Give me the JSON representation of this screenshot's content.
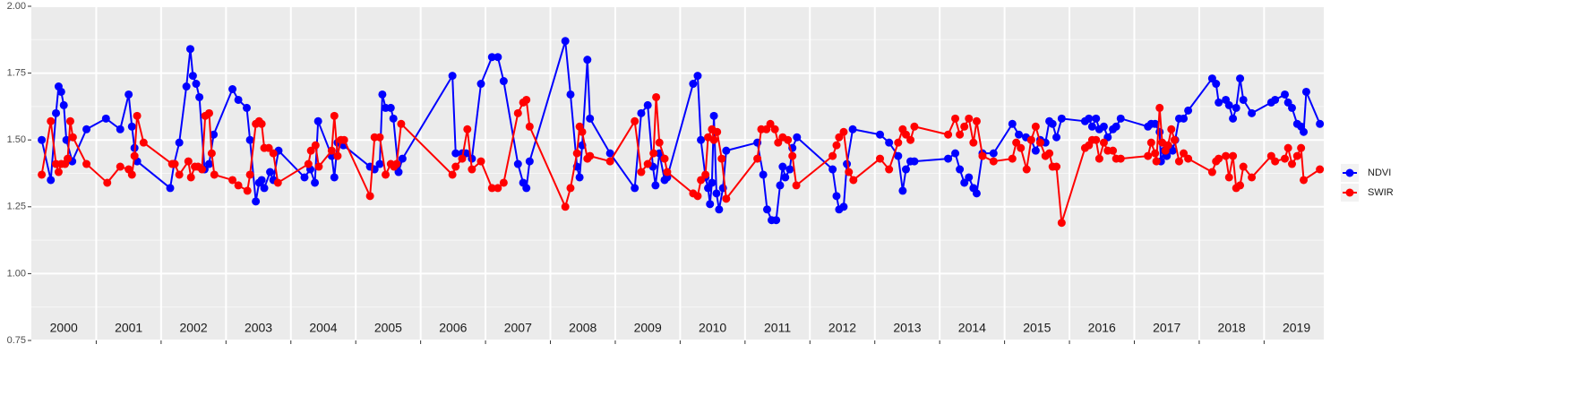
{
  "chart_data": {
    "type": "line",
    "xlim": [
      2000,
      2019.92
    ],
    "ylim": [
      0.75,
      2.0
    ],
    "yticks": [
      {
        "value": 0.75,
        "label": "0.75"
      },
      {
        "value": 1.0,
        "label": "1.00"
      },
      {
        "value": 1.25,
        "label": "1.25"
      },
      {
        "value": 1.5,
        "label": "1.50"
      },
      {
        "value": 1.75,
        "label": "1.75"
      },
      {
        "value": 2.0,
        "label": "2.00"
      }
    ],
    "xgrid": [
      2001,
      2002,
      2003,
      2004,
      2005,
      2006,
      2007,
      2008,
      2009,
      2010,
      2011,
      2012,
      2013,
      2014,
      2015,
      2016,
      2017,
      2018,
      2019
    ],
    "grid": true,
    "legend": "right",
    "year_labels": [
      {
        "x": 2000.5,
        "text": "2000"
      },
      {
        "x": 2001.5,
        "text": "2001"
      },
      {
        "x": 2002.5,
        "text": "2002"
      },
      {
        "x": 2003.5,
        "text": "2003"
      },
      {
        "x": 2004.5,
        "text": "2004"
      },
      {
        "x": 2005.5,
        "text": "2005"
      },
      {
        "x": 2006.5,
        "text": "2006"
      },
      {
        "x": 2007.5,
        "text": "2007"
      },
      {
        "x": 2008.5,
        "text": "2008"
      },
      {
        "x": 2009.5,
        "text": "2009"
      },
      {
        "x": 2010.5,
        "text": "2010"
      },
      {
        "x": 2011.5,
        "text": "2011"
      },
      {
        "x": 2012.5,
        "text": "2012"
      },
      {
        "x": 2013.5,
        "text": "2013"
      },
      {
        "x": 2014.5,
        "text": "2014"
      },
      {
        "x": 2015.5,
        "text": "2015"
      },
      {
        "x": 2016.5,
        "text": "2016"
      },
      {
        "x": 2017.5,
        "text": "2017"
      },
      {
        "x": 2018.5,
        "text": "2018"
      },
      {
        "x": 2019.5,
        "text": "2019"
      }
    ],
    "series": [
      {
        "name": "NDVI",
        "color": "#0000ff",
        "x": [
          2000.16,
          2000.3,
          2000.38,
          2000.42,
          2000.46,
          2000.5,
          2000.54,
          2000.63,
          2000.85,
          2001.15,
          2001.37,
          2001.5,
          2001.55,
          2001.59,
          2001.63,
          2002.14,
          2002.2,
          2002.28,
          2002.39,
          2002.45,
          2002.49,
          2002.54,
          2002.59,
          2002.67,
          2002.74,
          2002.81,
          2003.1,
          2003.19,
          2003.32,
          2003.37,
          2003.46,
          2003.51,
          2003.55,
          2003.59,
          2003.68,
          2003.73,
          2003.81,
          2004.21,
          2004.3,
          2004.37,
          2004.42,
          2004.63,
          2004.67,
          2004.72,
          2004.81,
          2005.22,
          2005.29,
          2005.37,
          2005.41,
          2005.46,
          2005.54,
          2005.58,
          2005.66,
          2005.72,
          2006.49,
          2006.54,
          2006.64,
          2006.7,
          2006.79,
          2006.93,
          2007.1,
          2007.19,
          2007.28,
          2007.5,
          2007.58,
          2007.63,
          2007.68,
          2008.23,
          2008.31,
          2008.41,
          2008.45,
          2008.49,
          2008.57,
          2008.61,
          2008.92,
          2009.3,
          2009.4,
          2009.5,
          2009.58,
          2009.62,
          2009.68,
          2009.76,
          2009.8,
          2010.2,
          2010.27,
          2010.32,
          2010.39,
          2010.43,
          2010.46,
          2010.49,
          2010.52,
          2010.56,
          2010.6,
          2010.66,
          2010.71,
          2011.19,
          2011.28,
          2011.34,
          2011.41,
          2011.48,
          2011.54,
          2011.58,
          2011.62,
          2011.69,
          2011.73,
          2011.8,
          2012.35,
          2012.41,
          2012.45,
          2012.52,
          2012.57,
          2012.66,
          2013.08,
          2013.22,
          2013.36,
          2013.43,
          2013.48,
          2013.55,
          2013.61,
          2014.13,
          2014.24,
          2014.31,
          2014.38,
          2014.45,
          2014.52,
          2014.57,
          2014.66,
          2014.83,
          2015.12,
          2015.22,
          2015.33,
          2015.41,
          2015.48,
          2015.55,
          2015.63,
          2015.69,
          2015.74,
          2015.8,
          2015.88,
          2016.24,
          2016.3,
          2016.35,
          2016.41,
          2016.46,
          2016.53,
          2016.59,
          2016.67,
          2016.72,
          2016.79,
          2017.21,
          2017.26,
          2017.32,
          2017.39,
          2017.41,
          2017.46,
          2017.5,
          2017.55,
          2017.59,
          2017.63,
          2017.69,
          2017.76,
          2017.83,
          2018.2,
          2018.26,
          2018.3,
          2018.41,
          2018.46,
          2018.52,
          2018.57,
          2018.63,
          2018.68,
          2018.81,
          2019.11,
          2019.17,
          2019.32,
          2019.37,
          2019.43,
          2019.51,
          2019.57,
          2019.61,
          2019.65,
          2019.86
        ],
        "values": [
          1.5,
          1.35,
          1.6,
          1.7,
          1.68,
          1.63,
          1.5,
          1.42,
          1.54,
          1.58,
          1.54,
          1.67,
          1.55,
          1.47,
          1.42,
          1.32,
          1.41,
          1.49,
          1.7,
          1.84,
          1.74,
          1.71,
          1.66,
          1.39,
          1.41,
          1.52,
          1.69,
          1.65,
          1.62,
          1.5,
          1.27,
          1.34,
          1.35,
          1.32,
          1.38,
          1.35,
          1.46,
          1.36,
          1.39,
          1.34,
          1.57,
          1.44,
          1.36,
          1.49,
          1.48,
          1.4,
          1.39,
          1.41,
          1.67,
          1.62,
          1.62,
          1.58,
          1.38,
          1.43,
          1.74,
          1.45,
          1.45,
          1.45,
          1.43,
          1.71,
          1.81,
          1.81,
          1.72,
          1.41,
          1.34,
          1.32,
          1.42,
          1.87,
          1.67,
          1.4,
          1.36,
          1.48,
          1.8,
          1.58,
          1.45,
          1.32,
          1.6,
          1.63,
          1.4,
          1.33,
          1.45,
          1.35,
          1.36,
          1.71,
          1.74,
          1.5,
          1.36,
          1.32,
          1.26,
          1.34,
          1.59,
          1.3,
          1.24,
          1.32,
          1.46,
          1.49,
          1.37,
          1.24,
          1.2,
          1.2,
          1.33,
          1.4,
          1.36,
          1.39,
          1.47,
          1.51,
          1.39,
          1.29,
          1.24,
          1.25,
          1.41,
          1.54,
          1.52,
          1.49,
          1.44,
          1.31,
          1.39,
          1.42,
          1.42,
          1.43,
          1.45,
          1.39,
          1.34,
          1.36,
          1.32,
          1.3,
          1.45,
          1.45,
          1.56,
          1.52,
          1.51,
          1.5,
          1.46,
          1.5,
          1.49,
          1.57,
          1.56,
          1.51,
          1.58,
          1.57,
          1.58,
          1.55,
          1.58,
          1.54,
          1.55,
          1.51,
          1.54,
          1.55,
          1.58,
          1.55,
          1.56,
          1.56,
          1.53,
          1.42,
          1.46,
          1.44,
          1.47,
          1.46,
          1.5,
          1.58,
          1.58,
          1.61,
          1.73,
          1.71,
          1.64,
          1.65,
          1.63,
          1.58,
          1.62,
          1.73,
          1.65,
          1.6,
          1.64,
          1.65,
          1.67,
          1.64,
          1.62,
          1.56,
          1.55,
          1.53,
          1.68,
          1.56
        ]
      },
      {
        "name": "SWIR",
        "color": "#ff0000",
        "x": [
          2000.16,
          2000.3,
          2000.38,
          2000.42,
          2000.46,
          2000.52,
          2000.56,
          2000.6,
          2000.64,
          2000.85,
          2001.17,
          2001.37,
          2001.5,
          2001.55,
          2001.59,
          2001.63,
          2001.73,
          2002.17,
          2002.21,
          2002.28,
          2002.42,
          2002.46,
          2002.52,
          2002.57,
          2002.63,
          2002.68,
          2002.74,
          2002.78,
          2002.82,
          2003.1,
          2003.19,
          2003.33,
          2003.37,
          2003.46,
          2003.51,
          2003.55,
          2003.59,
          2003.66,
          2003.73,
          2003.8,
          2004.27,
          2004.31,
          2004.38,
          2004.43,
          2004.63,
          2004.67,
          2004.72,
          2004.77,
          2004.82,
          2005.22,
          2005.29,
          2005.37,
          2005.46,
          2005.54,
          2005.59,
          2005.63,
          2005.7,
          2006.49,
          2006.54,
          2006.64,
          2006.72,
          2006.79,
          2006.93,
          2007.1,
          2007.19,
          2007.28,
          2007.5,
          2007.58,
          2007.63,
          2007.68,
          2008.23,
          2008.31,
          2008.41,
          2008.45,
          2008.49,
          2008.57,
          2008.61,
          2008.92,
          2009.3,
          2009.4,
          2009.5,
          2009.59,
          2009.63,
          2009.68,
          2009.76,
          2009.8,
          2010.2,
          2010.27,
          2010.32,
          2010.39,
          2010.43,
          2010.49,
          2010.52,
          2010.57,
          2010.64,
          2010.71,
          2011.19,
          2011.25,
          2011.33,
          2011.39,
          2011.46,
          2011.51,
          2011.58,
          2011.66,
          2011.73,
          2011.79,
          2012.35,
          2012.41,
          2012.45,
          2012.52,
          2012.6,
          2012.67,
          2013.08,
          2013.22,
          2013.36,
          2013.43,
          2013.48,
          2013.55,
          2013.61,
          2014.13,
          2014.24,
          2014.31,
          2014.38,
          2014.45,
          2014.52,
          2014.57,
          2014.66,
          2014.83,
          2015.12,
          2015.18,
          2015.25,
          2015.34,
          2015.41,
          2015.48,
          2015.55,
          2015.63,
          2015.69,
          2015.74,
          2015.8,
          2015.88,
          2016.24,
          2016.3,
          2016.35,
          2016.41,
          2016.46,
          2016.53,
          2016.59,
          2016.67,
          2016.72,
          2016.79,
          2017.21,
          2017.26,
          2017.32,
          2017.34,
          2017.39,
          2017.43,
          2017.48,
          2017.52,
          2017.57,
          2017.62,
          2017.69,
          2017.76,
          2017.83,
          2018.2,
          2018.26,
          2018.3,
          2018.41,
          2018.46,
          2018.52,
          2018.57,
          2018.63,
          2018.68,
          2018.81,
          2019.11,
          2019.17,
          2019.32,
          2019.37,
          2019.43,
          2019.51,
          2019.57,
          2019.61,
          2019.86
        ],
        "values": [
          1.37,
          1.57,
          1.41,
          1.38,
          1.41,
          1.41,
          1.43,
          1.57,
          1.51,
          1.41,
          1.34,
          1.4,
          1.39,
          1.37,
          1.44,
          1.59,
          1.49,
          1.41,
          1.41,
          1.37,
          1.42,
          1.36,
          1.4,
          1.4,
          1.39,
          1.59,
          1.6,
          1.45,
          1.37,
          1.35,
          1.33,
          1.31,
          1.37,
          1.56,
          1.57,
          1.56,
          1.47,
          1.47,
          1.45,
          1.34,
          1.41,
          1.46,
          1.48,
          1.4,
          1.46,
          1.59,
          1.44,
          1.5,
          1.5,
          1.29,
          1.51,
          1.51,
          1.37,
          1.41,
          1.4,
          1.41,
          1.56,
          1.37,
          1.4,
          1.43,
          1.54,
          1.39,
          1.42,
          1.32,
          1.32,
          1.34,
          1.6,
          1.64,
          1.65,
          1.55,
          1.25,
          1.32,
          1.45,
          1.55,
          1.53,
          1.43,
          1.44,
          1.42,
          1.57,
          1.38,
          1.41,
          1.45,
          1.66,
          1.49,
          1.43,
          1.38,
          1.3,
          1.29,
          1.35,
          1.37,
          1.51,
          1.54,
          1.5,
          1.53,
          1.43,
          1.28,
          1.43,
          1.54,
          1.54,
          1.56,
          1.54,
          1.49,
          1.51,
          1.5,
          1.44,
          1.33,
          1.44,
          1.48,
          1.51,
          1.53,
          1.38,
          1.35,
          1.43,
          1.39,
          1.49,
          1.54,
          1.52,
          1.5,
          1.55,
          1.52,
          1.58,
          1.52,
          1.55,
          1.58,
          1.49,
          1.57,
          1.44,
          1.42,
          1.43,
          1.49,
          1.47,
          1.39,
          1.5,
          1.55,
          1.49,
          1.44,
          1.45,
          1.4,
          1.4,
          1.19,
          1.47,
          1.48,
          1.5,
          1.5,
          1.43,
          1.49,
          1.46,
          1.46,
          1.43,
          1.43,
          1.44,
          1.49,
          1.45,
          1.42,
          1.62,
          1.49,
          1.46,
          1.48,
          1.54,
          1.5,
          1.42,
          1.45,
          1.43,
          1.38,
          1.42,
          1.43,
          1.44,
          1.36,
          1.44,
          1.32,
          1.33,
          1.4,
          1.36,
          1.44,
          1.42,
          1.43,
          1.47,
          1.41,
          1.44,
          1.47,
          1.35,
          1.39
        ]
      }
    ]
  }
}
